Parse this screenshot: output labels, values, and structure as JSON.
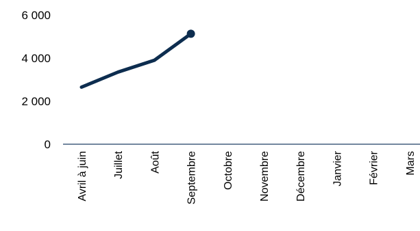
{
  "chart_data": {
    "type": "line",
    "categories": [
      "Avril à juin",
      "Juillet",
      "Août",
      "Septembre",
      "Octobre",
      "Novembre",
      "Décembre",
      "Janvier",
      "Février",
      "Mars"
    ],
    "series": [
      {
        "values": [
          2650,
          3350,
          3900,
          5130,
          null,
          null,
          null,
          null,
          null,
          null
        ]
      }
    ],
    "y_ticks": [
      0,
      2000,
      4000,
      6000
    ],
    "y_tick_labels": [
      "0",
      "2 000",
      "4 000",
      "6 000"
    ],
    "ylim": [
      0,
      6000
    ],
    "grid": false,
    "legend": "none",
    "colors": {
      "series": "#0d2d4f",
      "axis": "#1f3f63"
    }
  }
}
